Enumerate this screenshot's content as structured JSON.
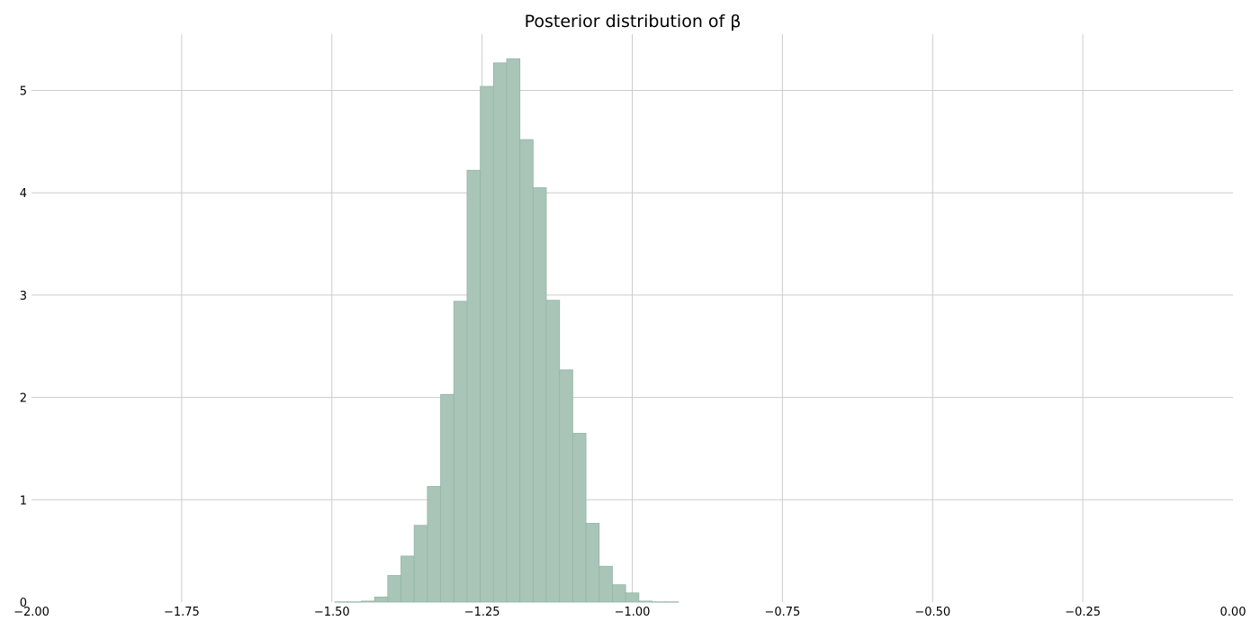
{
  "chart_data": {
    "type": "histogram",
    "title": "Posterior distribution of β",
    "xlabel": "",
    "ylabel": "",
    "xlim": [
      -2.0,
      0.0
    ],
    "ylim": [
      0,
      5.55
    ],
    "grid": true,
    "bar_color": "#a8c5b8",
    "xticks": [
      -2.0,
      -1.75,
      -1.5,
      -1.25,
      -1.0,
      -0.75,
      -0.5,
      -0.25,
      0.0
    ],
    "xtick_labels": [
      "−2.00",
      "−1.75",
      "−1.50",
      "−1.25",
      "−1.00",
      "−0.75",
      "−0.50",
      "−0.25",
      "0.00"
    ],
    "yticks": [
      0,
      1,
      2,
      3,
      4,
      5
    ],
    "ytick_labels": [
      "0",
      "1",
      "2",
      "3",
      "4",
      "5"
    ],
    "bins": [
      {
        "x0": -1.495,
        "x1": -1.473,
        "value": 0.003
      },
      {
        "x0": -1.473,
        "x1": -1.451,
        "value": 0.003
      },
      {
        "x0": -1.451,
        "x1": -1.429,
        "value": 0.01
      },
      {
        "x0": -1.429,
        "x1": -1.407,
        "value": 0.05
      },
      {
        "x0": -1.407,
        "x1": -1.385,
        "value": 0.26
      },
      {
        "x0": -1.385,
        "x1": -1.363,
        "value": 0.45
      },
      {
        "x0": -1.363,
        "x1": -1.341,
        "value": 0.75
      },
      {
        "x0": -1.341,
        "x1": -1.319,
        "value": 1.13
      },
      {
        "x0": -1.319,
        "x1": -1.297,
        "value": 2.03
      },
      {
        "x0": -1.297,
        "x1": -1.275,
        "value": 2.94
      },
      {
        "x0": -1.275,
        "x1": -1.253,
        "value": 4.22
      },
      {
        "x0": -1.253,
        "x1": -1.231,
        "value": 5.04
      },
      {
        "x0": -1.231,
        "x1": -1.209,
        "value": 5.27
      },
      {
        "x0": -1.209,
        "x1": -1.187,
        "value": 5.31
      },
      {
        "x0": -1.187,
        "x1": -1.165,
        "value": 4.52
      },
      {
        "x0": -1.165,
        "x1": -1.143,
        "value": 4.05
      },
      {
        "x0": -1.143,
        "x1": -1.121,
        "value": 2.95
      },
      {
        "x0": -1.121,
        "x1": -1.099,
        "value": 2.27
      },
      {
        "x0": -1.099,
        "x1": -1.077,
        "value": 1.65
      },
      {
        "x0": -1.077,
        "x1": -1.055,
        "value": 0.77
      },
      {
        "x0": -1.055,
        "x1": -1.033,
        "value": 0.35
      },
      {
        "x0": -1.033,
        "x1": -1.011,
        "value": 0.17
      },
      {
        "x0": -1.011,
        "x1": -0.989,
        "value": 0.09
      },
      {
        "x0": -0.989,
        "x1": -0.967,
        "value": 0.01
      },
      {
        "x0": -0.967,
        "x1": -0.945,
        "value": 0.003
      },
      {
        "x0": -0.945,
        "x1": -0.923,
        "value": 0.003
      }
    ]
  }
}
